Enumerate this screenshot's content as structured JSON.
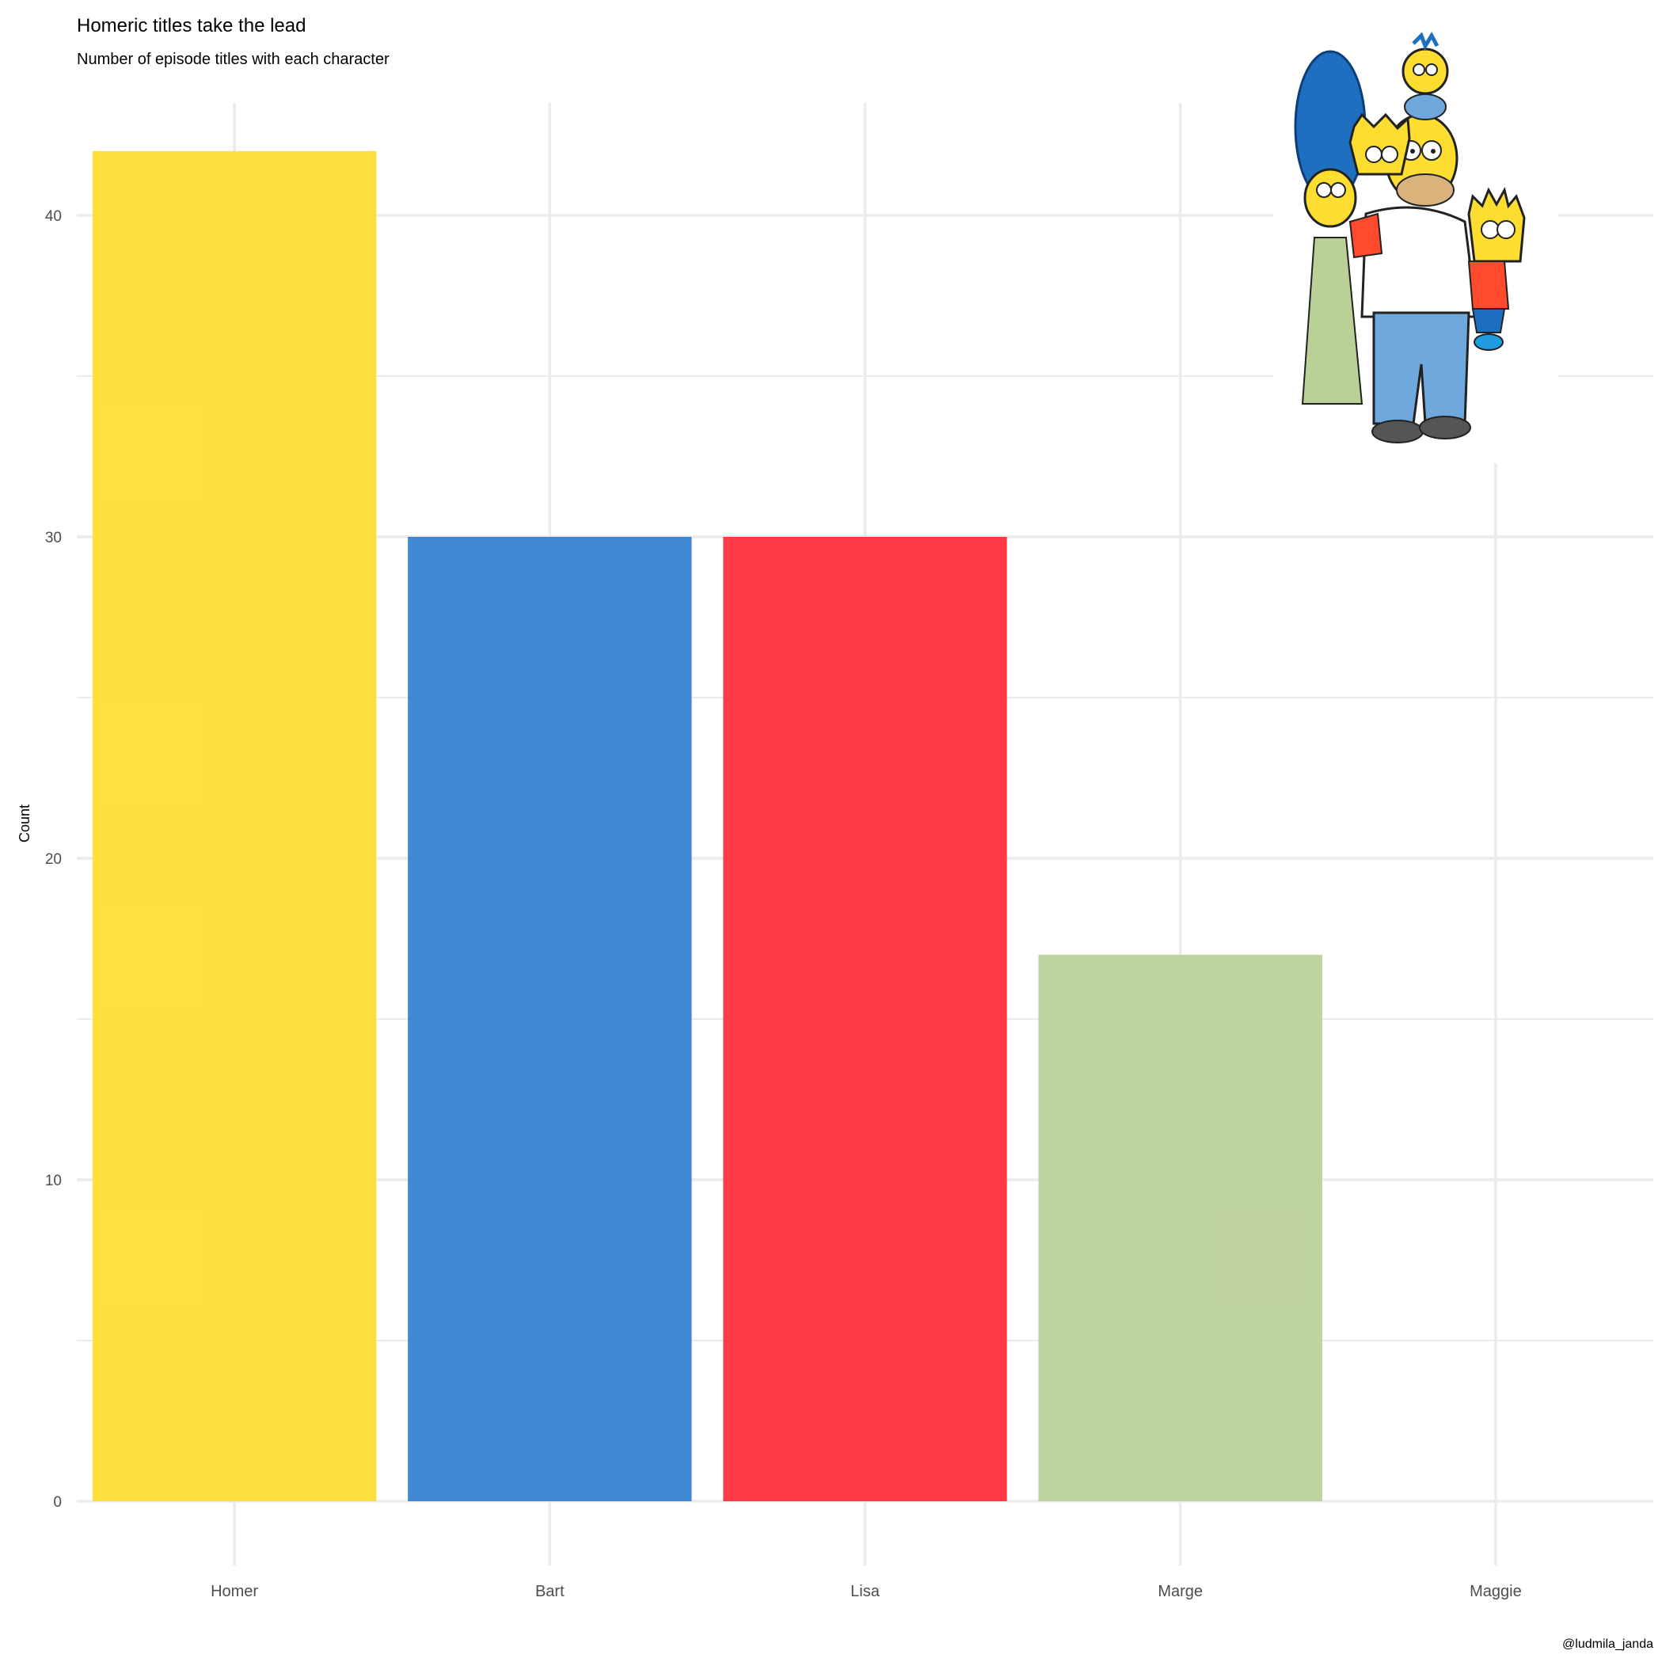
{
  "chart_data": {
    "type": "bar",
    "title": "Homeric titles take the lead",
    "subtitle": "Number of episode titles with each character",
    "xlabel": "",
    "ylabel": "Count",
    "caption": "@ludmila_janda",
    "categories": [
      "Homer",
      "Bart",
      "Lisa",
      "Marge",
      "Maggie"
    ],
    "values": [
      42,
      30,
      30,
      17,
      0
    ],
    "colors": [
      "#FDDD30",
      "#2F7ECE",
      "#FF2B36",
      "#B9D097",
      "#FFFFFF"
    ],
    "ylim": [
      -2,
      43.5
    ],
    "yticks": [
      "0",
      "10",
      "20",
      "30",
      "40"
    ],
    "grid": true,
    "legend": "none"
  },
  "image": {
    "icon": "simpsons-family-icon"
  }
}
